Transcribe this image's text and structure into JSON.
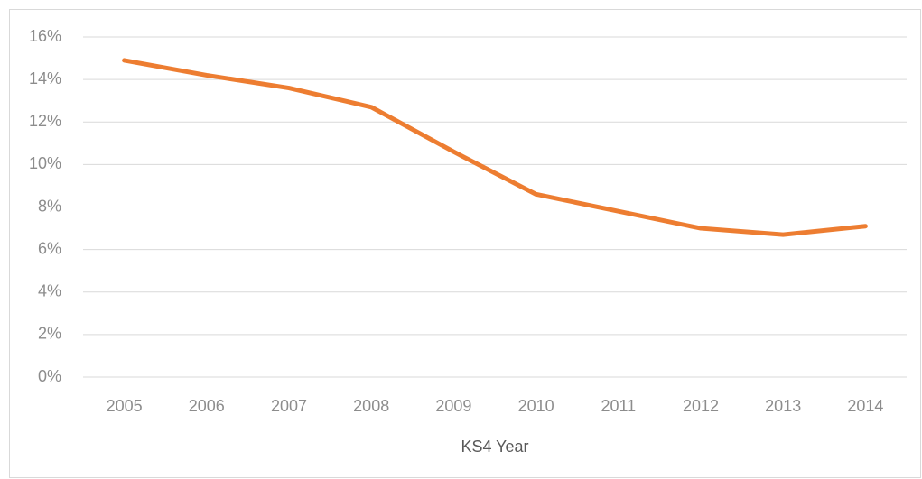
{
  "chart_data": {
    "type": "line",
    "x_label": "KS4 Year",
    "categories": [
      "2005",
      "2006",
      "2007",
      "2008",
      "2009",
      "2010",
      "2011",
      "2012",
      "2013",
      "2014"
    ],
    "values": [
      14.9,
      14.2,
      13.6,
      12.7,
      10.6,
      8.6,
      7.8,
      7.0,
      6.7,
      7.1
    ],
    "color": "#ed7d31",
    "ylim": [
      0,
      16
    ],
    "yticks": [
      {
        "value": 0,
        "label": "0%"
      },
      {
        "value": 2,
        "label": "2%"
      },
      {
        "value": 4,
        "label": "4%"
      },
      {
        "value": 6,
        "label": "6%"
      },
      {
        "value": 8,
        "label": "8%"
      },
      {
        "value": 10,
        "label": "10%"
      },
      {
        "value": 12,
        "label": "12%"
      },
      {
        "value": 14,
        "label": "14%"
      },
      {
        "value": 16,
        "label": "16%"
      }
    ],
    "grid": true
  }
}
